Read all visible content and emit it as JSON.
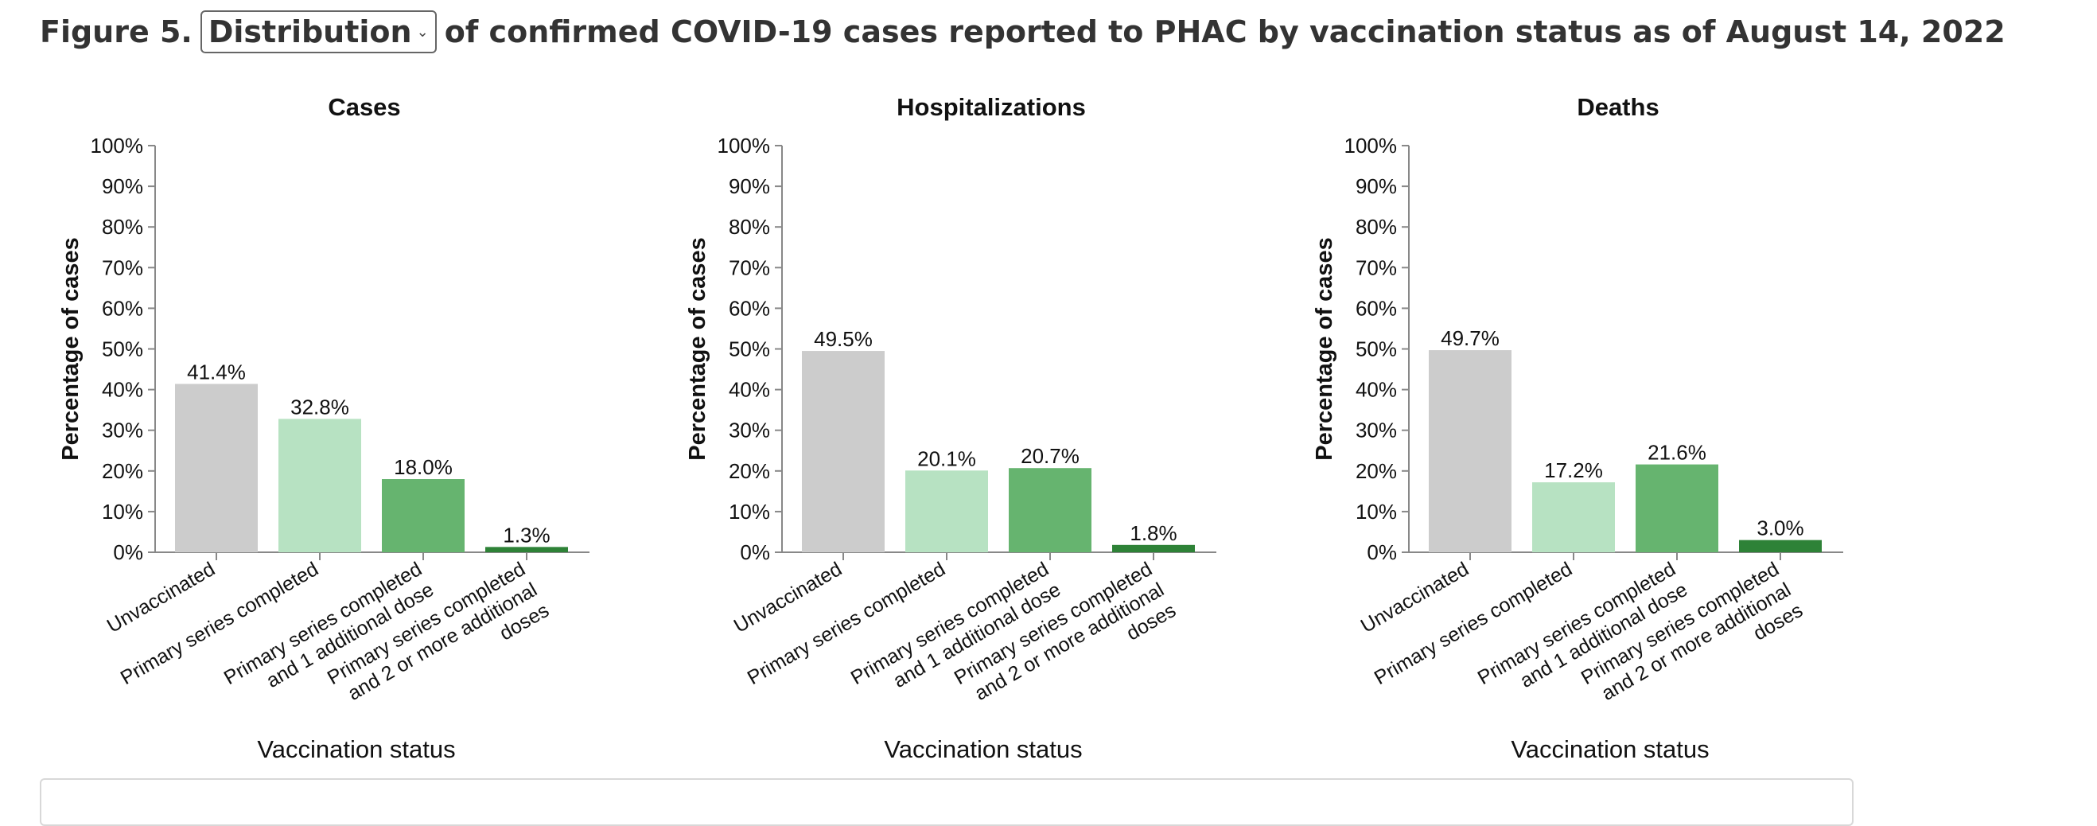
{
  "figure": {
    "prefix": "Figure 5.",
    "selected_option": "Distribution",
    "suffix": "of confirmed COVID-19 cases reported to PHAC by vaccination status as of August 14, 2022"
  },
  "colors": {
    "unvaccinated": "#cccccc",
    "primary_series": "#b7e2c2",
    "one_additional": "#66b46f",
    "two_or_more_additional": "#2e8237"
  },
  "chart_data": [
    {
      "type": "bar",
      "title": "Cases",
      "xlabel": "Vaccination status",
      "ylabel": "Percentage of cases",
      "ylim": [
        0,
        100
      ],
      "yticks": [
        "0%",
        "10%",
        "20%",
        "30%",
        "40%",
        "50%",
        "60%",
        "70%",
        "80%",
        "90%",
        "100%"
      ],
      "categories": [
        "Unvaccinated",
        "Primary series completed",
        "Primary series completed and 1 additional dose",
        "Primary series completed and 2 or more additional doses"
      ],
      "values": [
        41.4,
        32.8,
        18.0,
        1.3
      ],
      "labels": [
        "41.4%",
        "32.8%",
        "18.0%",
        "1.3%"
      ],
      "grid": false
    },
    {
      "type": "bar",
      "title": "Hospitalizations",
      "xlabel": "Vaccination status",
      "ylabel": "Percentage of cases",
      "ylim": [
        0,
        100
      ],
      "yticks": [
        "0%",
        "10%",
        "20%",
        "30%",
        "40%",
        "50%",
        "60%",
        "70%",
        "80%",
        "90%",
        "100%"
      ],
      "categories": [
        "Unvaccinated",
        "Primary series completed",
        "Primary series completed and 1 additional dose",
        "Primary series completed and 2 or more additional doses"
      ],
      "values": [
        49.5,
        20.1,
        20.7,
        1.8
      ],
      "labels": [
        "49.5%",
        "20.1%",
        "20.7%",
        "1.8%"
      ],
      "grid": false
    },
    {
      "type": "bar",
      "title": "Deaths",
      "xlabel": "Vaccination status",
      "ylabel": "Percentage of cases",
      "ylim": [
        0,
        100
      ],
      "yticks": [
        "0%",
        "10%",
        "20%",
        "30%",
        "40%",
        "50%",
        "60%",
        "70%",
        "80%",
        "90%",
        "100%"
      ],
      "categories": [
        "Unvaccinated",
        "Primary series completed",
        "Primary series completed and 1 additional dose",
        "Primary series completed and 2 or more additional doses"
      ],
      "values": [
        49.7,
        17.2,
        21.6,
        3.0
      ],
      "labels": [
        "49.7%",
        "17.2%",
        "21.6%",
        "3.0%"
      ],
      "grid": false
    }
  ]
}
